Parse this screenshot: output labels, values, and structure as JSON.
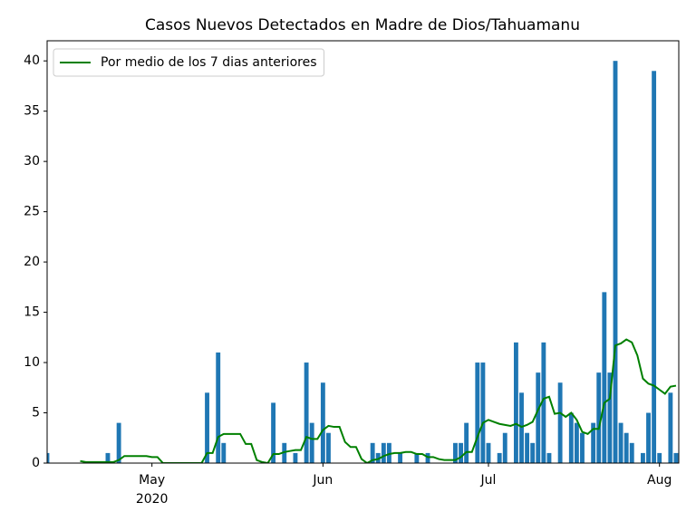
{
  "chart_data": {
    "type": "bar-line",
    "title": "Casos Nuevos Detectados en Madre de Dios/Tahuamanu",
    "x": [
      103,
      104,
      105,
      106,
      107,
      108,
      109,
      110,
      111,
      112,
      113,
      114,
      115,
      116,
      117,
      118,
      119,
      120,
      121,
      122,
      123,
      124,
      125,
      126,
      127,
      128,
      129,
      130,
      131,
      132,
      133,
      134,
      135,
      136,
      137,
      138,
      139,
      140,
      141,
      142,
      143,
      144,
      145,
      146,
      147,
      148,
      149,
      150,
      151,
      152,
      153,
      154,
      155,
      156,
      157,
      158,
      159,
      160,
      161,
      162,
      163,
      164,
      165,
      166,
      167,
      168,
      169,
      170,
      171,
      172,
      173,
      174,
      175,
      176,
      177,
      178,
      179,
      180,
      181,
      182,
      183,
      184,
      185,
      186,
      187,
      188,
      189,
      190,
      191,
      192,
      193,
      194,
      195,
      196,
      197,
      198,
      199,
      200,
      201,
      202,
      203,
      204,
      205,
      206,
      207,
      208,
      209,
      210,
      211,
      212,
      213,
      214,
      215,
      216,
      217
    ],
    "series": [
      {
        "type": "bar",
        "color": "#1f77b4",
        "values": [
          1,
          0,
          0,
          0,
          0,
          0,
          0,
          0,
          0,
          0,
          0,
          1,
          0,
          4,
          0,
          0,
          0,
          0,
          0,
          0,
          0,
          0,
          0,
          0,
          0,
          0,
          0,
          0,
          0,
          7,
          0,
          11,
          2,
          0,
          0,
          0,
          0,
          0,
          0,
          0,
          0,
          6,
          0,
          2,
          0,
          1,
          0,
          10,
          4,
          0,
          8,
          3,
          0,
          0,
          0,
          0,
          0,
          0,
          0,
          2,
          1,
          2,
          2,
          0,
          1,
          0,
          0,
          1,
          0,
          1,
          0,
          0,
          0,
          0,
          2,
          2,
          4,
          0,
          10,
          10,
          2,
          0,
          1,
          3,
          0,
          12,
          7,
          3,
          2,
          9,
          12,
          1,
          0,
          8,
          0,
          5,
          4,
          3,
          0,
          4,
          9,
          17,
          9,
          40,
          4,
          3,
          2,
          0,
          1,
          5,
          39,
          1,
          0,
          7,
          1
        ]
      },
      {
        "type": "line",
        "name": "Por medio de los 7 dias anteriores",
        "color": "#008000",
        "values": [
          null,
          null,
          null,
          null,
          null,
          null,
          0.2,
          0.1,
          0.1,
          0.1,
          0.1,
          0.1,
          0.1,
          0.3,
          0.7,
          0.7,
          0.7,
          0.7,
          0.7,
          0.6,
          0.6,
          0,
          0,
          0,
          0,
          0,
          0,
          0,
          0,
          1.0,
          1.0,
          2.6,
          2.9,
          2.9,
          2.9,
          2.9,
          1.9,
          1.9,
          0.3,
          0.1,
          0,
          0.9,
          0.9,
          1.1,
          1.2,
          1.3,
          1.3,
          2.6,
          2.4,
          2.4,
          3.3,
          3.7,
          3.6,
          3.6,
          2.1,
          1.6,
          1.6,
          0.4,
          0,
          0.3,
          0.4,
          0.7,
          0.9,
          1.0,
          1.0,
          1.1,
          1.1,
          0.9,
          0.9,
          0.6,
          0.6,
          0.4,
          0.3,
          0.3,
          0.3,
          0.6,
          1.1,
          1.1,
          2.6,
          4.0,
          4.3,
          4.1,
          3.9,
          3.8,
          3.7,
          3.9,
          3.6,
          3.8,
          4.1,
          5.3,
          6.4,
          6.6,
          4.9,
          5.0,
          4.6,
          5.0,
          4.3,
          3.1,
          2.9,
          3.4,
          3.4,
          6.0,
          6.4,
          11.7,
          11.9,
          12.3,
          12.0,
          10.7,
          8.4,
          7.9,
          7.7,
          7.3,
          6.9,
          7.6,
          7.7
        ]
      }
    ],
    "xlim": [
      103,
      217.5
    ],
    "xticks": [
      {
        "value": 122,
        "label": "May\n2020"
      },
      {
        "value": 153,
        "label": "Jun"
      },
      {
        "value": 183,
        "label": "Jul"
      },
      {
        "value": 214,
        "label": "Aug"
      }
    ],
    "ylim": [
      0,
      42
    ],
    "yticks": [
      0,
      5,
      10,
      15,
      20,
      25,
      30,
      35,
      40
    ],
    "legend": "upper left"
  }
}
